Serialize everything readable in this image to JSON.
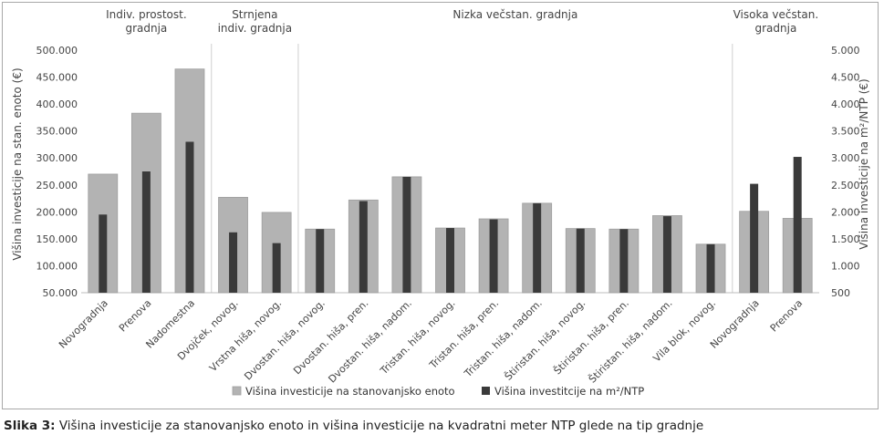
{
  "caption": {
    "label": "Slika 3:",
    "text": "Višina investicije za stanovanjsko enoto in višina investicije na kvadratni meter NTP glede na tip gradnje"
  },
  "chart_data": {
    "type": "bar",
    "categories": [
      "Novogradnja",
      "Prenova",
      "Nadomestna",
      "Dvojček, novog.",
      "Vrstna hiša, novog.",
      "Dvostan. hiša, novog.",
      "Dvostan. hiša, pren.",
      "Dvostan. hiša, nadom.",
      "Tristan. hiša, novog.",
      "Tristan. hiša, pren.",
      "Tristan. hiša, nadom.",
      "Štiristan. hiša, novog.",
      "Štiristan. hiša, pren.",
      "Štiristan. hiša, nadom.",
      "Vila blok, novog.",
      "Novogradnja",
      "Prenova"
    ],
    "groups": [
      {
        "label_lines": [
          "Indiv. prostost.",
          "gradnja"
        ],
        "start": 0,
        "end": 2
      },
      {
        "label_lines": [
          "Strnjena",
          "indiv. gradnja"
        ],
        "start": 3,
        "end": 4
      },
      {
        "label_lines": [
          "Nizka večstan. gradnja"
        ],
        "start": 5,
        "end": 14
      },
      {
        "label_lines": [
          "Visoka večstan.",
          "gradnja"
        ],
        "start": 15,
        "end": 16
      }
    ],
    "series": [
      {
        "name": "Višina investicije na stanovanjsko enoto",
        "axis": "left",
        "color": "#b3b3b3",
        "values": [
          270000,
          383000,
          465000,
          227000,
          199000,
          168000,
          222000,
          265000,
          170000,
          187000,
          216000,
          169000,
          168000,
          193000,
          140000,
          201000,
          188000
        ]
      },
      {
        "name": "Višina investitcije na m²/NTP",
        "axis": "right",
        "color": "#3a3a3a",
        "values": [
          1950,
          2750,
          3300,
          1620,
          1420,
          1680,
          2200,
          2650,
          1700,
          1860,
          2160,
          1690,
          1680,
          1920,
          1400,
          2520,
          3020
        ]
      }
    ],
    "left_axis": {
      "label": "Višina investicije na stan. enoto (€)",
      "ylim": [
        50000,
        500000
      ],
      "ticks": [
        50000,
        100000,
        150000,
        200000,
        250000,
        300000,
        350000,
        400000,
        450000,
        500000
      ],
      "tick_labels": [
        "50.000",
        "100.000",
        "150.000",
        "200.000",
        "250.000",
        "300.000",
        "350.000",
        "400.000",
        "450.000",
        "500.000"
      ]
    },
    "right_axis": {
      "label": "Višina investicije na m²/NTP (€)",
      "ylim": [
        500,
        5000
      ],
      "ticks": [
        500,
        1000,
        1500,
        2000,
        2500,
        3000,
        3500,
        4000,
        4500,
        5000
      ],
      "tick_labels": [
        "500",
        "1.000",
        "1.500",
        "2.000",
        "2.500",
        "3.000",
        "3.500",
        "4.000",
        "4.500",
        "5.000"
      ]
    },
    "grid": false,
    "legend_position": "bottom"
  }
}
